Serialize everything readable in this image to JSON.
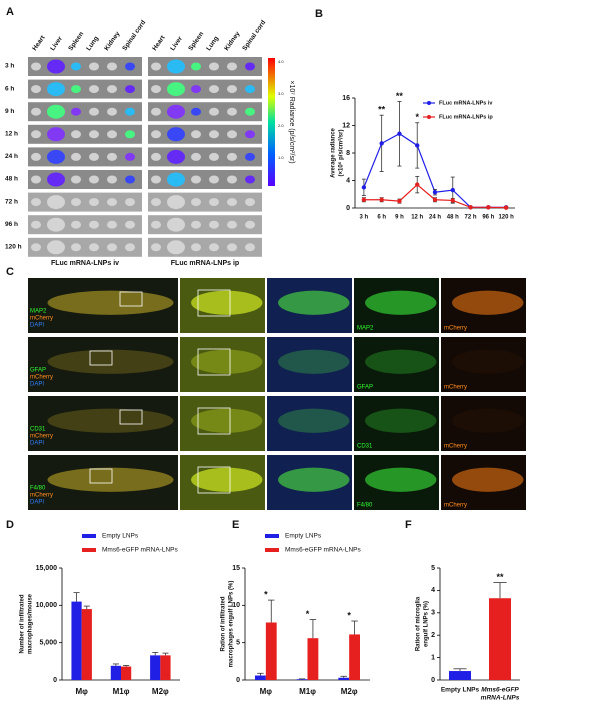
{
  "panel_a": {
    "label": "A",
    "organs_iv": [
      "Heart",
      "Liver",
      "Spleen",
      "Lung",
      "Kidney",
      "Spinal cord"
    ],
    "organs_ip": [
      "Heart",
      "Liver",
      "Spleen",
      "Lung",
      "Kidney",
      "Spinal cord"
    ],
    "timepoints": [
      "3 h",
      "6 h",
      "9 h",
      "12 h",
      "24 h",
      "48 h",
      "72 h",
      "96 h",
      "120 h"
    ],
    "captions": [
      "FLuc mRNA-LNPs iv",
      "FLuc mRNA-LNPs ip"
    ],
    "colorbar_label": "×10⁷ Radiance (p/s/cm²/sr)",
    "colorbar_ticks": [
      "4.0",
      "3.0",
      "2.0",
      "1.0"
    ]
  },
  "panel_c": {
    "label": "C",
    "rows": [
      {
        "overlay": [
          "MAP2",
          "mCherry",
          "DAPI"
        ],
        "marker": "MAP2",
        "reporter": "mCherry"
      },
      {
        "overlay": [
          "GFAP",
          "mCherry",
          "DAPI"
        ],
        "marker": "GFAP",
        "reporter": "mCherry"
      },
      {
        "overlay": [
          "CD31",
          "mCherry",
          "DAPI"
        ],
        "marker": "CD31",
        "reporter": "mCherry"
      },
      {
        "overlay": [
          "F4/80",
          "mCherry",
          "DAPI"
        ],
        "marker": "F4/80",
        "reporter": "mCherry"
      }
    ]
  },
  "chart_data": [
    {
      "type": "line",
      "panel": "B",
      "y_label": [
        "Average radiance",
        "(×10⁶ p/s/cm²/sr)"
      ],
      "categories": [
        "3 h",
        "6 h",
        "9 h",
        "12 h",
        "24 h",
        "48 h",
        "72 h",
        "96 h",
        "120 h"
      ],
      "series": [
        {
          "name": "FLuc mRNA-LNPs iv",
          "color": "#1f1fe6",
          "values": [
            3.0,
            9.4,
            10.8,
            9.1,
            2.3,
            2.6,
            0.1,
            0.1,
            0.1
          ],
          "errors": [
            1.2,
            4.1,
            4.7,
            3.3,
            0.4,
            1.9,
            0.1,
            0.1,
            0.1
          ]
        },
        {
          "name": "FLuc mRNA-LNPs ip",
          "color": "#e61f1f",
          "values": [
            1.2,
            1.2,
            1.0,
            3.4,
            1.2,
            1.1,
            0.1,
            0.1,
            0.05
          ],
          "errors": [
            0.3,
            0.3,
            0.3,
            1.2,
            0.3,
            0.3,
            0.05,
            0.05,
            0.05
          ]
        }
      ],
      "significance": [
        null,
        "**",
        "**",
        "*",
        null,
        null,
        null,
        null,
        null
      ],
      "ylim": [
        0,
        16
      ],
      "yticks": [
        0,
        4,
        8,
        12,
        16
      ],
      "legend": "upper right"
    },
    {
      "type": "bar",
      "panel": "D",
      "y_label": [
        "Number of infiltrated",
        "macrophages/mouse"
      ],
      "categories": [
        "Mφ",
        "M1φ",
        "M2φ"
      ],
      "series": [
        {
          "name": "Empty LNPs",
          "color": "#1f1fe6",
          "values": [
            10500,
            1900,
            3300
          ],
          "errors": [
            1200,
            250,
            400
          ]
        },
        {
          "name": "Mms6-eGFP mRNA-LNPs",
          "color": "#e61f1f",
          "values": [
            9500,
            1800,
            3300
          ],
          "errors": [
            400,
            150,
            300
          ]
        }
      ],
      "ylim": [
        0,
        15000
      ],
      "yticks": [
        0,
        {
          "value": 5000,
          "label": "5,000"
        },
        {
          "value": 10000,
          "label": "10,000"
        },
        {
          "value": 15000,
          "label": "15,000"
        }
      ],
      "legend": "top"
    },
    {
      "type": "bar",
      "panel": "E",
      "y_label": [
        "Ration of infiltrated",
        "macrophages engulf LNPs (%)"
      ],
      "categories": [
        "Mφ",
        "M1φ",
        "M2φ"
      ],
      "series": [
        {
          "name": "Empty LNPs",
          "color": "#1f1fe6",
          "values": [
            0.6,
            0.1,
            0.3
          ],
          "errors": [
            0.3,
            0.05,
            0.2
          ]
        },
        {
          "name": "Mms6-eGFP mRNA-LNPs",
          "color": "#e61f1f",
          "values": [
            7.7,
            5.6,
            6.1
          ],
          "errors": [
            3.0,
            2.5,
            1.8
          ]
        }
      ],
      "significance": [
        "*",
        "*",
        "*"
      ],
      "ylim": [
        0,
        15
      ],
      "yticks": [
        0,
        5,
        10,
        15
      ],
      "legend": "top"
    },
    {
      "type": "bar",
      "panel": "F",
      "y_label": [
        "Ration of microglia",
        "engulf LNPs (%)"
      ],
      "categories": [
        [
          "Empty LNPs"
        ],
        [
          "Mms6-eGFP",
          "mRNA-LNPs"
        ]
      ],
      "values": [
        0.4,
        3.65
      ],
      "errors": [
        0.1,
        0.7
      ],
      "colors": [
        "#1f1fe6",
        "#e61f1f"
      ],
      "significance": [
        null,
        "**"
      ],
      "ylim": [
        0,
        5
      ],
      "yticks": [
        0,
        1,
        2,
        3,
        4,
        5
      ]
    }
  ]
}
